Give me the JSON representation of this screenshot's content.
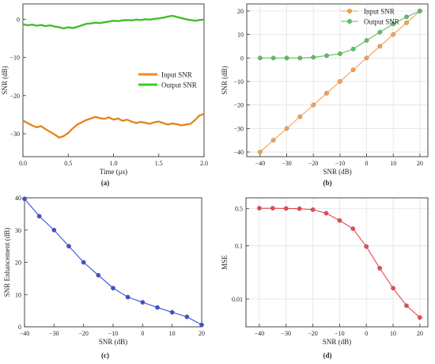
{
  "chart_data": [
    {
      "panel_label": "(a)",
      "type": "line",
      "xlabel": "Time (μs)",
      "ylabel": "SNR (dB)",
      "xlim": [
        0,
        2.0
      ],
      "ylim": [
        -36,
        4
      ],
      "xticks": [
        {
          "v": 0.0,
          "t": "0.0"
        },
        {
          "v": 0.5,
          "t": "0.5"
        },
        {
          "v": 1.0,
          "t": "1.0"
        },
        {
          "v": 1.5,
          "t": "1.5"
        },
        {
          "v": 2.0,
          "t": "2.0"
        }
      ],
      "yticks": [
        {
          "v": 0,
          "t": "0"
        },
        {
          "v": -10,
          "t": "−10"
        },
        {
          "v": -20,
          "t": "−20"
        },
        {
          "v": -30,
          "t": "−30"
        }
      ],
      "grid": false,
      "legend_position": "center-right",
      "series": [
        {
          "name": "Input SNR",
          "color": "#f28c1e",
          "points": [
            [
              0.0,
              -26.5
            ],
            [
              0.05,
              -27.2
            ],
            [
              0.1,
              -27.8
            ],
            [
              0.15,
              -28.3
            ],
            [
              0.2,
              -28.0
            ],
            [
              0.25,
              -28.8
            ],
            [
              0.3,
              -29.5
            ],
            [
              0.35,
              -30.2
            ],
            [
              0.4,
              -31.0
            ],
            [
              0.45,
              -30.6
            ],
            [
              0.5,
              -29.8
            ],
            [
              0.55,
              -28.6
            ],
            [
              0.6,
              -27.6
            ],
            [
              0.65,
              -27.0
            ],
            [
              0.7,
              -26.4
            ],
            [
              0.75,
              -26.0
            ],
            [
              0.8,
              -25.6
            ],
            [
              0.85,
              -25.9
            ],
            [
              0.9,
              -26.1
            ],
            [
              0.95,
              -25.7
            ],
            [
              1.0,
              -26.3
            ],
            [
              1.05,
              -26.0
            ],
            [
              1.1,
              -26.6
            ],
            [
              1.15,
              -26.3
            ],
            [
              1.2,
              -26.8
            ],
            [
              1.25,
              -27.2
            ],
            [
              1.3,
              -26.9
            ],
            [
              1.35,
              -27.1
            ],
            [
              1.4,
              -27.4
            ],
            [
              1.45,
              -27.0
            ],
            [
              1.5,
              -26.8
            ],
            [
              1.55,
              -27.2
            ],
            [
              1.6,
              -27.6
            ],
            [
              1.65,
              -27.3
            ],
            [
              1.7,
              -27.5
            ],
            [
              1.75,
              -27.8
            ],
            [
              1.8,
              -27.6
            ],
            [
              1.85,
              -27.4
            ],
            [
              1.9,
              -26.4
            ],
            [
              1.95,
              -25.2
            ],
            [
              2.0,
              -24.8
            ]
          ]
        },
        {
          "name": "Output SNR",
          "color": "#3ccc2a",
          "points": [
            [
              0.0,
              -1.3
            ],
            [
              0.05,
              -1.6
            ],
            [
              0.1,
              -1.4
            ],
            [
              0.15,
              -1.7
            ],
            [
              0.2,
              -1.5
            ],
            [
              0.25,
              -1.8
            ],
            [
              0.3,
              -1.6
            ],
            [
              0.35,
              -1.9
            ],
            [
              0.4,
              -2.1
            ],
            [
              0.45,
              -2.4
            ],
            [
              0.5,
              -2.1
            ],
            [
              0.55,
              -2.3
            ],
            [
              0.6,
              -2.0
            ],
            [
              0.65,
              -1.6
            ],
            [
              0.7,
              -1.2
            ],
            [
              0.75,
              -1.1
            ],
            [
              0.8,
              -0.9
            ],
            [
              0.85,
              -1.0
            ],
            [
              0.9,
              -0.8
            ],
            [
              0.95,
              -0.6
            ],
            [
              1.0,
              -0.4
            ],
            [
              1.05,
              -0.5
            ],
            [
              1.1,
              -0.3
            ],
            [
              1.15,
              -0.2
            ],
            [
              1.2,
              -0.3
            ],
            [
              1.25,
              -0.1
            ],
            [
              1.3,
              -0.2
            ],
            [
              1.35,
              0.0
            ],
            [
              1.4,
              -0.1
            ],
            [
              1.45,
              0.1
            ],
            [
              1.5,
              0.2
            ],
            [
              1.55,
              0.4
            ],
            [
              1.6,
              0.7
            ],
            [
              1.65,
              0.9
            ],
            [
              1.7,
              0.6
            ],
            [
              1.75,
              0.3
            ],
            [
              1.8,
              0.0
            ],
            [
              1.85,
              -0.2
            ],
            [
              1.9,
              -0.4
            ],
            [
              1.95,
              -0.2
            ],
            [
              2.0,
              -0.1
            ]
          ]
        }
      ]
    },
    {
      "panel_label": "(b)",
      "type": "line",
      "xlabel": "SNR (dB)",
      "ylabel": "SNR (dB)",
      "xlim": [
        -45,
        23
      ],
      "ylim": [
        -42,
        23
      ],
      "xticks": [
        {
          "v": -40,
          "t": "−40"
        },
        {
          "v": -30,
          "t": "−30"
        },
        {
          "v": -20,
          "t": "−20"
        },
        {
          "v": -10,
          "t": "−10"
        },
        {
          "v": 0,
          "t": "0"
        },
        {
          "v": 10,
          "t": "10"
        },
        {
          "v": 20,
          "t": "20"
        }
      ],
      "yticks": [
        {
          "v": 20,
          "t": "20"
        },
        {
          "v": 10,
          "t": "10"
        },
        {
          "v": 0,
          "t": "0"
        },
        {
          "v": -10,
          "t": "−10"
        },
        {
          "v": -20,
          "t": "−20"
        },
        {
          "v": -30,
          "t": "−30"
        },
        {
          "v": -40,
          "t": "−40"
        }
      ],
      "grid": true,
      "legend_position": "top-right",
      "series": [
        {
          "name": "Input SNR",
          "color": "#f7a04e",
          "points": [
            [
              -40,
              -40
            ],
            [
              -35,
              -35
            ],
            [
              -30,
              -30
            ],
            [
              -25,
              -25
            ],
            [
              -20,
              -20
            ],
            [
              -15,
              -15
            ],
            [
              -10,
              -10
            ],
            [
              -5,
              -5
            ],
            [
              0,
              0
            ],
            [
              5,
              5
            ],
            [
              10,
              10
            ],
            [
              15,
              15
            ],
            [
              20,
              20
            ]
          ]
        },
        {
          "name": "Output SNR",
          "color": "#5cbf63",
          "points": [
            [
              -40,
              0
            ],
            [
              -35,
              0
            ],
            [
              -30,
              0
            ],
            [
              -25,
              0
            ],
            [
              -20,
              0.3
            ],
            [
              -15,
              1
            ],
            [
              -10,
              1.8
            ],
            [
              -5,
              3.8
            ],
            [
              0,
              7.5
            ],
            [
              5,
              11
            ],
            [
              10,
              14.5
            ],
            [
              15,
              17.5
            ],
            [
              20,
              20
            ]
          ]
        }
      ]
    },
    {
      "panel_label": "(c)",
      "type": "line",
      "xlabel": "SNR (dB)",
      "ylabel": "SNR  Enhancement (dB)",
      "xlim": [
        -40,
        20
      ],
      "ylim": [
        0,
        40
      ],
      "xticks": [
        {
          "v": -40,
          "t": "−40"
        },
        {
          "v": -30,
          "t": "−30"
        },
        {
          "v": -20,
          "t": "−20"
        },
        {
          "v": -10,
          "t": "−10"
        },
        {
          "v": 0,
          "t": "0"
        },
        {
          "v": 10,
          "t": "10"
        },
        {
          "v": 20,
          "t": "20"
        }
      ],
      "yticks": [
        {
          "v": 0,
          "t": "0"
        },
        {
          "v": 10,
          "t": "10"
        },
        {
          "v": 20,
          "t": "20"
        },
        {
          "v": 30,
          "t": "30"
        },
        {
          "v": 40,
          "t": "40"
        }
      ],
      "grid": false,
      "series": [
        {
          "color": "#3b4fd6",
          "points": [
            [
              -40,
              39.7
            ],
            [
              -35,
              34.3
            ],
            [
              -30,
              30
            ],
            [
              -25,
              25
            ],
            [
              -20,
              20
            ],
            [
              -15,
              16
            ],
            [
              -10,
              12
            ],
            [
              -5,
              9.2
            ],
            [
              0,
              7.6
            ],
            [
              5,
              6
            ],
            [
              10,
              4.5
            ],
            [
              15,
              3.1
            ],
            [
              20,
              0.6
            ]
          ]
        }
      ]
    },
    {
      "panel_label": "(d)",
      "type": "line",
      "xlabel": "SNR (dB)",
      "ylabel": "MSE",
      "xscale": "linear",
      "yscale": "log",
      "xlim": [
        -45,
        23
      ],
      "ylim": [
        0.003,
        0.8
      ],
      "xticks": [
        {
          "v": -40,
          "t": "−40"
        },
        {
          "v": -30,
          "t": "−30"
        },
        {
          "v": -20,
          "t": "−20"
        },
        {
          "v": -10,
          "t": "−10"
        },
        {
          "v": 0,
          "t": "0"
        },
        {
          "v": 10,
          "t": "10"
        },
        {
          "v": 20,
          "t": "20"
        }
      ],
      "yticks": [
        {
          "v": 0.5,
          "t": "0.5"
        },
        {
          "v": 0.1,
          "t": "0.1"
        },
        {
          "v": 0.01,
          "t": "0.01"
        }
      ],
      "grid": true,
      "series": [
        {
          "color": "#e8494d",
          "points": [
            [
              -40,
              0.51
            ],
            [
              -35,
              0.51
            ],
            [
              -30,
              0.505
            ],
            [
              -25,
              0.5
            ],
            [
              -20,
              0.48
            ],
            [
              -15,
              0.41
            ],
            [
              -10,
              0.3
            ],
            [
              -5,
              0.21
            ],
            [
              0,
              0.097
            ],
            [
              5,
              0.038
            ],
            [
              10,
              0.016
            ],
            [
              15,
              0.0075
            ],
            [
              20,
              0.0045
            ]
          ]
        }
      ]
    }
  ]
}
